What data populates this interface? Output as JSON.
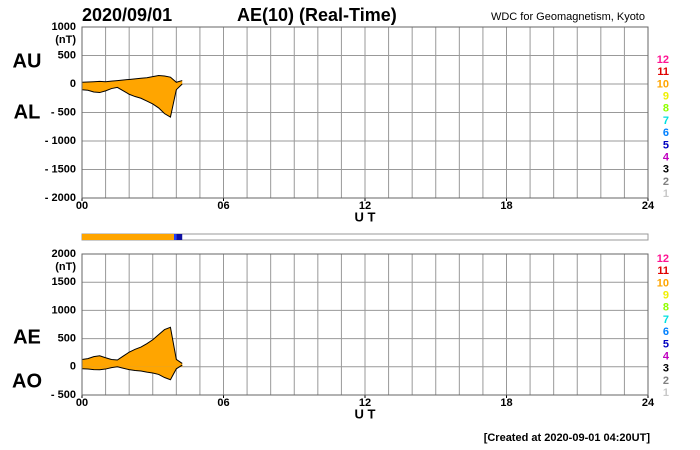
{
  "header": {
    "date": "2020/09/01",
    "title": "AE(10) (Real-Time)",
    "source": "WDC for Geomagnetism, Kyoto",
    "footer": "[Created at 2020-09-01 04:20UT]"
  },
  "station_bar": {
    "segments": [
      {
        "start": 0,
        "end": 3.9,
        "color": "#ffa500"
      },
      {
        "start": 3.9,
        "end": 4.0,
        "color": "#2040ff"
      },
      {
        "start": 4.0,
        "end": 4.25,
        "color": "#1010a0"
      }
    ]
  },
  "station_legend": {
    "labels": [
      "12",
      "11",
      "10",
      "9",
      "8",
      "7",
      "6",
      "5",
      "4",
      "3",
      "2",
      "1"
    ],
    "colors": [
      "#ff1493",
      "#e00000",
      "#ffa500",
      "#f0f000",
      "#90ff00",
      "#00e0e0",
      "#0080ff",
      "#0000c0",
      "#c000c0",
      "#000000",
      "#808080",
      "#c8c8c8"
    ]
  },
  "chart_data": [
    {
      "type": "area",
      "ylabel": "(nT)",
      "xlabel": "U T",
      "xlim": [
        0,
        24
      ],
      "xticks": [
        {
          "value": 0,
          "label": "00"
        },
        {
          "value": 6,
          "label": "06"
        },
        12,
        18,
        24
      ],
      "grid_x_step": 1,
      "ylim": [
        -2000,
        1000
      ],
      "yticks": [
        1000,
        500,
        0,
        {
          "value": -500,
          "label": "- 500"
        },
        {
          "value": -1000,
          "label": "- 1000"
        },
        {
          "value": -1500,
          "label": "- 1500"
        },
        {
          "value": -2000,
          "label": "- 2000"
        }
      ],
      "x": [
        0,
        0.25,
        0.5,
        0.75,
        1,
        1.25,
        1.5,
        1.75,
        2,
        2.25,
        2.5,
        2.75,
        3,
        3.25,
        3.5,
        3.75,
        4,
        4.25
      ],
      "series": [
        {
          "name": "AU",
          "color": "#ffa500",
          "values": [
            30,
            35,
            40,
            45,
            40,
            50,
            60,
            70,
            80,
            90,
            100,
            110,
            130,
            150,
            140,
            120,
            30,
            60
          ]
        },
        {
          "name": "AL",
          "color": "#ffa500",
          "values": [
            -100,
            -110,
            -140,
            -150,
            -120,
            -80,
            -60,
            -120,
            -180,
            -220,
            -250,
            -300,
            -350,
            -420,
            -520,
            -580,
            -100,
            0
          ]
        }
      ]
    },
    {
      "type": "area",
      "ylabel": "(nT)",
      "xlabel": "U T",
      "xlim": [
        0,
        24
      ],
      "xticks": [
        {
          "value": 0,
          "label": "00"
        },
        {
          "value": 6,
          "label": "06"
        },
        12,
        18,
        24
      ],
      "grid_x_step": 1,
      "ylim": [
        -500,
        2000
      ],
      "yticks": [
        2000,
        1500,
        1000,
        500,
        0,
        {
          "value": -500,
          "label": "- 500"
        }
      ],
      "x": [
        0,
        0.25,
        0.5,
        0.75,
        1,
        1.25,
        1.5,
        1.75,
        2,
        2.25,
        2.5,
        2.75,
        3,
        3.25,
        3.5,
        3.75,
        4,
        4.25
      ],
      "series": [
        {
          "name": "AE",
          "color": "#ffa500",
          "values": [
            130,
            145,
            180,
            195,
            160,
            130,
            120,
            190,
            260,
            310,
            350,
            410,
            480,
            570,
            660,
            700,
            130,
            60
          ]
        },
        {
          "name": "AO",
          "color": "#ffa500",
          "values": [
            -35,
            -38,
            -50,
            -53,
            -40,
            -15,
            0,
            -25,
            -50,
            -65,
            -75,
            -95,
            -110,
            -135,
            -190,
            -230,
            -35,
            30
          ]
        }
      ]
    }
  ]
}
